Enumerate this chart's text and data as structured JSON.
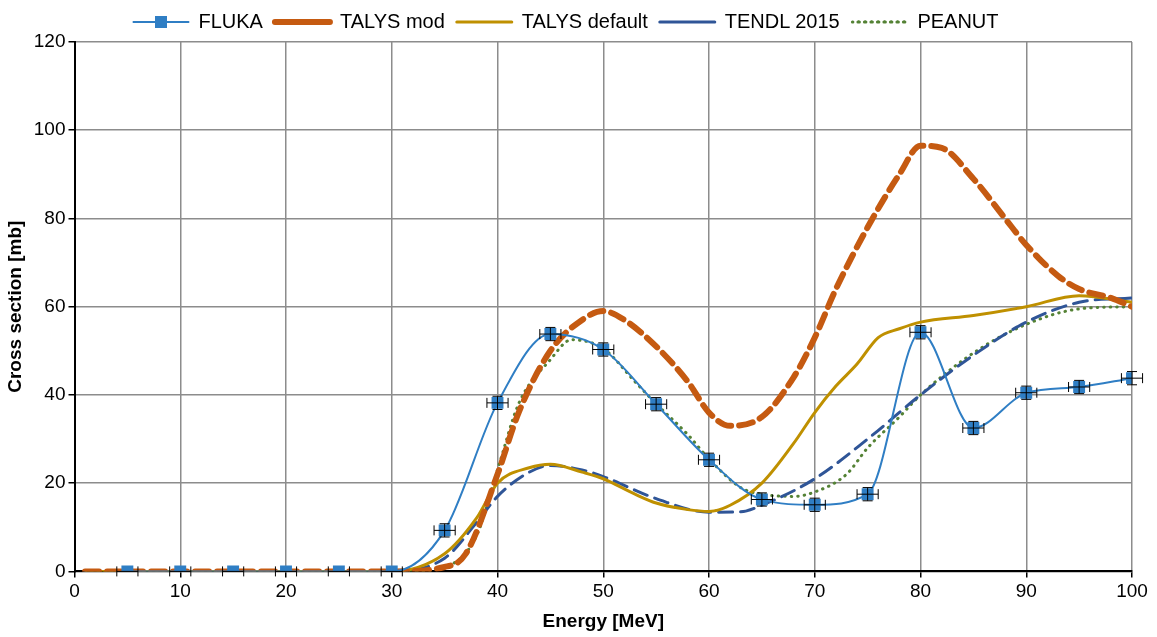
{
  "chart_data": {
    "type": "line",
    "xlabel": "Energy [MeV]",
    "ylabel": "Cross section [mb]",
    "xlim": [
      0,
      100
    ],
    "ylim": [
      0,
      120
    ],
    "xticks": [
      0,
      10,
      20,
      30,
      40,
      50,
      60,
      70,
      80,
      90,
      100
    ],
    "yticks": [
      0,
      20,
      40,
      60,
      80,
      100,
      120
    ],
    "grid": true,
    "legend": "top",
    "series": [
      {
        "name": "FLUKA",
        "color": "#2f7ec4",
        "marker": "square",
        "line_style": "solid",
        "x": [
          5,
          10,
          15,
          20,
          25,
          30,
          35,
          40,
          45,
          50,
          55,
          60,
          65,
          70,
          75,
          80,
          85,
          90,
          95,
          100
        ],
        "values": [
          0,
          0,
          0,
          0,
          0,
          0,
          9.3,
          38.2,
          53.8,
          50.3,
          37.9,
          25.3,
          16.3,
          15.1,
          17.5,
          54.2,
          32.5,
          40.5,
          41.8,
          43.8
        ],
        "errors": [
          null,
          null,
          null,
          null,
          null,
          null,
          1.5,
          1.5,
          1.5,
          1.5,
          1.5,
          1.5,
          1.5,
          1.5,
          1.5,
          1.5,
          1.5,
          1.5,
          1.5,
          1.5
        ],
        "xerrors": [
          1,
          1,
          1,
          1,
          1,
          1,
          1,
          1,
          1,
          1,
          1,
          1,
          1,
          1,
          1,
          1,
          1,
          1,
          1,
          1
        ]
      },
      {
        "name": "TALYS mod",
        "color": "#c55a11",
        "marker": "none",
        "line_style": "dashed",
        "x": [
          1,
          30,
          35,
          37,
          40,
          42,
          45,
          48,
          50,
          52,
          55,
          58,
          60,
          62,
          65,
          68,
          70,
          72,
          75,
          78,
          80,
          82,
          85,
          88,
          90,
          93,
          95,
          98,
          100
        ],
        "values": [
          0,
          0,
          1,
          4,
          22,
          36,
          50,
          57,
          59,
          57,
          51,
          43,
          36,
          33,
          35,
          44,
          53,
          64,
          78,
          90,
          96.5,
          96,
          89,
          80,
          74,
          67,
          64,
          62,
          60
        ]
      },
      {
        "name": "TALYS default",
        "color": "#bf9000",
        "marker": "none",
        "line_style": "solid",
        "x": [
          1,
          30,
          35,
          38,
          40,
          43,
          45,
          48,
          50,
          53,
          55,
          58,
          60,
          62,
          65,
          68,
          70,
          72,
          74,
          76,
          78,
          80,
          85,
          90,
          95,
          100
        ],
        "values": [
          0,
          0,
          4,
          12,
          20,
          23.5,
          24.3,
          22.5,
          21,
          17.5,
          15.5,
          14,
          13.6,
          15,
          20,
          29,
          36,
          42,
          47,
          53,
          55,
          56.5,
          58,
          60,
          62.5,
          61
        ]
      },
      {
        "name": "TENDL 2015",
        "color": "#2f5597",
        "marker": "none",
        "line_style": "dashed",
        "x": [
          1,
          30,
          35,
          38,
          40,
          43,
          45,
          48,
          50,
          55,
          60,
          63,
          65,
          70,
          75,
          80,
          85,
          90,
          95,
          100
        ],
        "values": [
          0,
          0,
          3,
          11,
          17,
          22.5,
          24,
          23,
          21.5,
          16.5,
          13.4,
          13.5,
          15,
          21,
          30,
          40,
          49,
          56.5,
          61,
          62
        ]
      },
      {
        "name": "PEANUT",
        "color": "#548235",
        "marker": "none",
        "line_style": "dotted",
        "x": [
          1,
          31,
          35,
          38,
          40,
          42,
          45,
          47,
          50,
          53,
          55,
          58,
          60,
          63,
          65,
          68,
          70,
          73,
          75,
          78,
          80,
          85,
          90,
          95,
          100
        ],
        "values": [
          0,
          0,
          1,
          8,
          23,
          38,
          48,
          52.5,
          50.5,
          43,
          38,
          31,
          25.5,
          19,
          17.5,
          17,
          18,
          22,
          28,
          35,
          40,
          49.5,
          56,
          59.5,
          60
        ]
      }
    ]
  }
}
